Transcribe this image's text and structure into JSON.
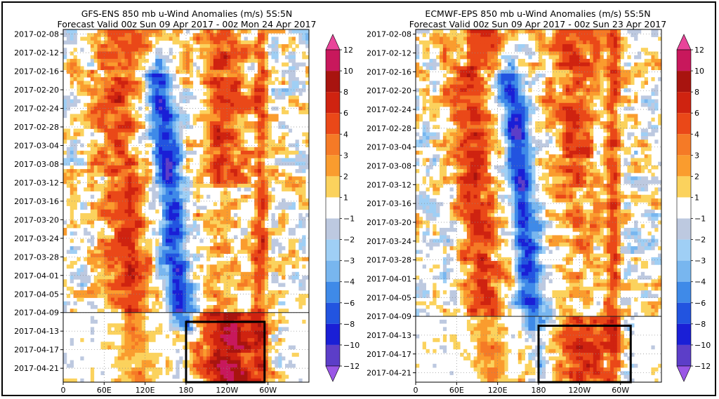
{
  "chart_data": [
    {
      "type": "heatmap",
      "title": "GFS-ENS  850 mb u-Wind Anomalies (m/s) 5S:5N",
      "subtitle": "Forecast Valid 00z Sun 09 Apr 2017 - 00z Mon 24 Apr 2017",
      "x_ticks": [
        "0",
        "60E",
        "120E",
        "180",
        "120W",
        "60W"
      ],
      "x_tick_lon": [
        0,
        60,
        120,
        180,
        240,
        300
      ],
      "xlim": [
        0,
        360
      ],
      "y_ticks": [
        "2017-02-08",
        "2017-02-12",
        "2017-02-16",
        "2017-02-20",
        "2017-02-24",
        "2017-02-28",
        "2017-03-04",
        "2017-03-08",
        "2017-03-12",
        "2017-03-16",
        "2017-03-20",
        "2017-03-24",
        "2017-03-28",
        "2017-04-01",
        "2017-04-05",
        "2017-04-09",
        "2017-04-13",
        "2017-04-17",
        "2017-04-21"
      ],
      "ylim": [
        "2017-02-07",
        "2017-04-24"
      ],
      "forecast_start": "2017-04-09",
      "highlight_box": {
        "lon": [
          180,
          295
        ],
        "dates": [
          "2017-04-11",
          "2017-04-24"
        ]
      },
      "grid": true
    },
    {
      "type": "heatmap",
      "title": "ECMWF-EPS  850 mb u-Wind Anomalies (m/s) 5S:5N",
      "subtitle": "Forecast Valid 00z Sun 09 Apr 2017 - 00z Sun 23 Apr 2017",
      "x_ticks": [
        "0",
        "60E",
        "120E",
        "180",
        "120W",
        "60W"
      ],
      "x_tick_lon": [
        0,
        60,
        120,
        180,
        240,
        300
      ],
      "xlim": [
        0,
        360
      ],
      "y_ticks": [
        "2017-02-08",
        "2017-02-12",
        "2017-02-16",
        "2017-02-20",
        "2017-02-24",
        "2017-02-28",
        "2017-03-04",
        "2017-03-08",
        "2017-03-12",
        "2017-03-16",
        "2017-03-20",
        "2017-03-24",
        "2017-03-28",
        "2017-04-01",
        "2017-04-05",
        "2017-04-09",
        "2017-04-13",
        "2017-04-17",
        "2017-04-21"
      ],
      "ylim": [
        "2017-02-07",
        "2017-04-23"
      ],
      "forecast_start": "2017-04-09",
      "highlight_box": {
        "lon": [
          180,
          315
        ],
        "dates": [
          "2017-04-11",
          "2017-04-23"
        ]
      },
      "grid": true
    }
  ],
  "colorbar": {
    "levels": [
      "12",
      "10",
      "8",
      "6",
      "4",
      "3",
      "2",
      "1",
      "−1",
      "−2",
      "−3",
      "−4",
      "−6",
      "−8",
      "−10",
      "−12"
    ],
    "colors": [
      "#e9449a",
      "#c8185c",
      "#a8140f",
      "#cf2310",
      "#ea4818",
      "#f57a26",
      "#fa9c2e",
      "#fbd25d",
      "#ffffff",
      "#bdc9e0",
      "#9fcff5",
      "#78b6ef",
      "#3f8ae8",
      "#2254e0",
      "#1a1fd6",
      "#5c3ec8",
      "#9a57e6"
    ]
  }
}
